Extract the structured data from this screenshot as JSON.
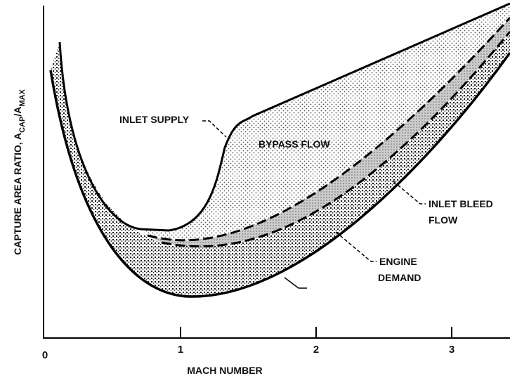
{
  "diagram": {
    "y_axis_label": {
      "main": "CAPTURE AREA RATIO,  A",
      "sub1": "CAP",
      "mid": "/A",
      "sub2": "MAX"
    },
    "x_axis_label": "MACH NUMBER",
    "x_ticks": [
      "0",
      "1",
      "2",
      "3"
    ],
    "annotations": {
      "inlet_supply": "INLET SUPPLY",
      "bypass_flow": "BYPASS FLOW",
      "inlet_bleed_flow": [
        "INLET BLEED",
        "FLOW"
      ],
      "engine_demand": [
        "ENGINE",
        "DEMAND"
      ]
    }
  }
}
